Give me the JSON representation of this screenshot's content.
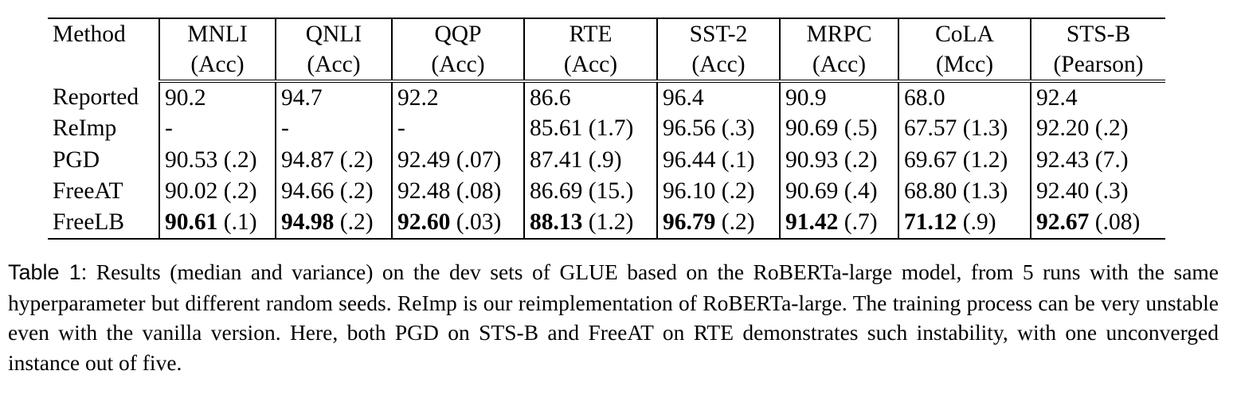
{
  "table": {
    "columns": [
      {
        "name": "Method",
        "metric": ""
      },
      {
        "name": "MNLI",
        "metric": "(Acc)"
      },
      {
        "name": "QNLI",
        "metric": "(Acc)"
      },
      {
        "name": "QQP",
        "metric": "(Acc)"
      },
      {
        "name": "RTE",
        "metric": "(Acc)"
      },
      {
        "name": "SST-2",
        "metric": "(Acc)"
      },
      {
        "name": "MRPC",
        "metric": "(Acc)"
      },
      {
        "name": "CoLA",
        "metric": "(Mcc)"
      },
      {
        "name": "STS-B",
        "metric": "(Pearson)"
      }
    ],
    "rows": [
      {
        "method": "Reported",
        "cells": [
          {
            "value": "90.2",
            "var": ""
          },
          {
            "value": "94.7",
            "var": ""
          },
          {
            "value": "92.2",
            "var": ""
          },
          {
            "value": "86.6",
            "var": ""
          },
          {
            "value": "96.4",
            "var": ""
          },
          {
            "value": "90.9",
            "var": ""
          },
          {
            "value": "68.0",
            "var": ""
          },
          {
            "value": "92.4",
            "var": ""
          }
        ]
      },
      {
        "method": "ReImp",
        "cells": [
          {
            "value": "-",
            "var": ""
          },
          {
            "value": "-",
            "var": ""
          },
          {
            "value": "-",
            "var": ""
          },
          {
            "value": "85.61",
            "var": "(1.7)"
          },
          {
            "value": "96.56",
            "var": "(.3)"
          },
          {
            "value": "90.69",
            "var": "(.5)"
          },
          {
            "value": "67.57",
            "var": "(1.3)"
          },
          {
            "value": "92.20",
            "var": "(.2)"
          }
        ]
      },
      {
        "method": "PGD",
        "cells": [
          {
            "value": "90.53",
            "var": "(.2)"
          },
          {
            "value": "94.87",
            "var": "(.2)"
          },
          {
            "value": "92.49",
            "var": "(.07)"
          },
          {
            "value": "87.41",
            "var": "(.9)"
          },
          {
            "value": "96.44",
            "var": "(.1)"
          },
          {
            "value": "90.93",
            "var": "(.2)"
          },
          {
            "value": "69.67",
            "var": "(1.2)"
          },
          {
            "value": "92.43",
            "var": "(7.)"
          }
        ]
      },
      {
        "method": "FreeAT",
        "cells": [
          {
            "value": "90.02",
            "var": "(.2)"
          },
          {
            "value": "94.66",
            "var": "(.2)"
          },
          {
            "value": "92.48",
            "var": "(.08)"
          },
          {
            "value": "86.69",
            "var": "(15.)"
          },
          {
            "value": "96.10",
            "var": "(.2)"
          },
          {
            "value": "90.69",
            "var": "(.4)"
          },
          {
            "value": "68.80",
            "var": "(1.3)"
          },
          {
            "value": "92.40",
            "var": "(.3)"
          }
        ]
      },
      {
        "method": "FreeLB",
        "cells": [
          {
            "value": "90.61",
            "var": "(.1)",
            "bold": true
          },
          {
            "value": "94.98",
            "var": "(.2)",
            "bold": true
          },
          {
            "value": "92.60",
            "var": "(.03)",
            "bold": true
          },
          {
            "value": "88.13",
            "var": "(1.2)",
            "bold": true
          },
          {
            "value": "96.79",
            "var": "(.2)",
            "bold": true
          },
          {
            "value": "91.42",
            "var": "(.7)",
            "bold": true
          },
          {
            "value": "71.12",
            "var": "(.9)",
            "bold": true
          },
          {
            "value": "92.67",
            "var": "(.08)",
            "bold": true
          }
        ]
      }
    ]
  },
  "caption": {
    "label": "Table 1:",
    "text": "Results (median and variance) on the dev sets of GLUE based on the RoBERTa-large model, from 5 runs with the same hyperparameter but different random seeds. ReImp is our reimplementation of RoBERTa-large. The training process can be very unstable even with the vanilla version. Here, both PGD on STS-B and FreeAT on RTE demonstrates such instability, with one unconverged instance out of five."
  }
}
